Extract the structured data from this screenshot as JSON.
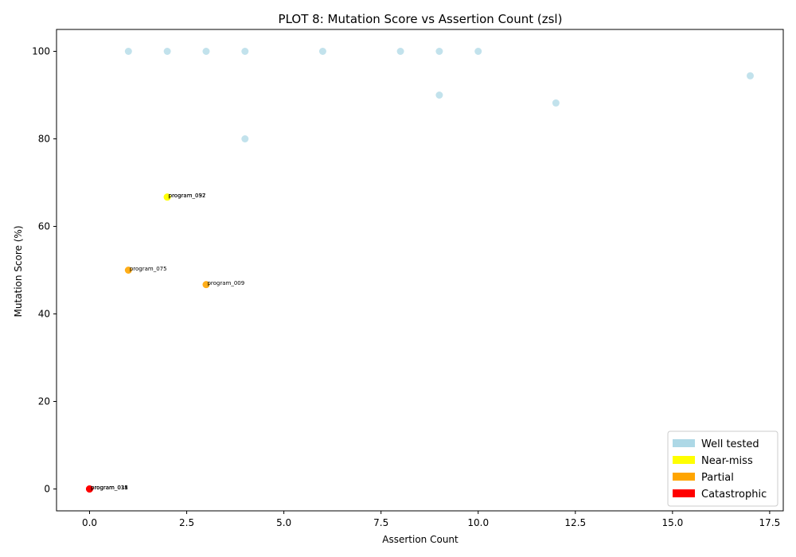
{
  "chart_data": {
    "type": "scatter",
    "title": "PLOT 8: Mutation Score vs Assertion Count (zsl)",
    "xlabel": "Assertion Count",
    "ylabel": "Mutation Score (%)",
    "xlim": [
      -0.85,
      17.85
    ],
    "ylim": [
      -5,
      105
    ],
    "xticks": [
      0.0,
      2.5,
      5.0,
      7.5,
      10.0,
      12.5,
      15.0,
      17.5
    ],
    "xtick_labels": [
      "0.0",
      "2.5",
      "5.0",
      "7.5",
      "10.0",
      "12.5",
      "15.0",
      "17.5"
    ],
    "yticks": [
      0,
      20,
      40,
      60,
      80,
      100
    ],
    "ytick_labels": [
      "0",
      "20",
      "40",
      "60",
      "80",
      "100"
    ],
    "grid": false,
    "legend_position": "bottom-right",
    "categories": [
      {
        "name": "Well tested",
        "color": "#add8e6"
      },
      {
        "name": "Near-miss",
        "color": "#ffff00"
      },
      {
        "name": "Partial",
        "color": "#ffa500"
      },
      {
        "name": "Catastrophic",
        "color": "#ff0000"
      }
    ],
    "points": [
      {
        "x": 1,
        "y": 100,
        "category": "Well tested"
      },
      {
        "x": 2,
        "y": 100,
        "category": "Well tested"
      },
      {
        "x": 3,
        "y": 100,
        "category": "Well tested"
      },
      {
        "x": 4,
        "y": 100,
        "category": "Well tested"
      },
      {
        "x": 6,
        "y": 100,
        "category": "Well tested"
      },
      {
        "x": 8,
        "y": 100,
        "category": "Well tested"
      },
      {
        "x": 9,
        "y": 100,
        "category": "Well tested"
      },
      {
        "x": 10,
        "y": 100,
        "category": "Well tested"
      },
      {
        "x": 17,
        "y": 94.4,
        "category": "Well tested"
      },
      {
        "x": 9,
        "y": 90,
        "category": "Well tested"
      },
      {
        "x": 12,
        "y": 88.2,
        "category": "Well tested"
      },
      {
        "x": 4,
        "y": 80,
        "category": "Well tested"
      },
      {
        "x": 2,
        "y": 66.7,
        "category": "Near-miss",
        "label": "program_097"
      },
      {
        "x": 2,
        "y": 66.7,
        "category": "Near-miss",
        "label": "program_032"
      },
      {
        "x": 1,
        "y": 50,
        "category": "Partial",
        "label": "program_075"
      },
      {
        "x": 3,
        "y": 46.7,
        "category": "Partial",
        "label": "program_009"
      },
      {
        "x": 0,
        "y": 0,
        "category": "Catastrophic",
        "label": "program_011"
      },
      {
        "x": 0,
        "y": 0,
        "category": "Catastrophic",
        "label": "program_018"
      },
      {
        "x": 0,
        "y": 0,
        "category": "Catastrophic",
        "label": "program_035"
      }
    ]
  }
}
